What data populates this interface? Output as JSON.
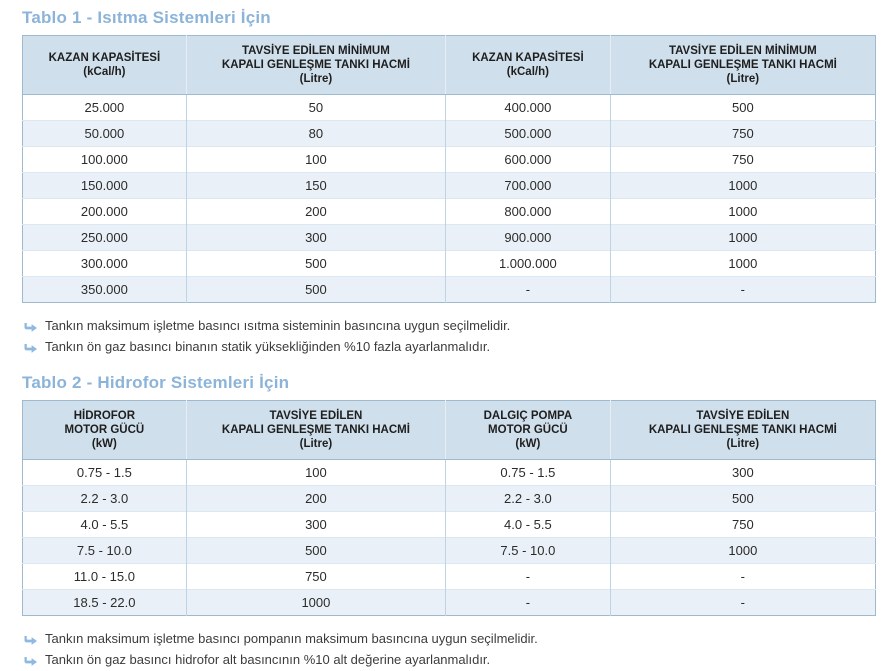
{
  "colors": {
    "title": "#8cb4d9",
    "header-bg": "#cfdfeb",
    "stripe": "#e9f0f7",
    "border-outer": "#9fb9cf",
    "border-inner": "#bed3e4",
    "row-line": "#dbe7f1",
    "header-divider": "#e6edf4",
    "text": "#2b2b2b",
    "note": "#3c3c3c",
    "bullet": "#8fb9e0"
  },
  "table1": {
    "title": "Tablo 1 - Isıtma Sistemleri İçin",
    "headers": [
      "KAZAN KAPASİTESİ\n(kCal/h)",
      "TAVSİYE EDİLEN MİNİMUM\nKAPALI GENLEŞME TANKI HACMİ\n(Litre)",
      "KAZAN KAPASİTESİ\n(kCal/h)",
      "TAVSİYE EDİLEN MİNİMUM\nKAPALI GENLEŞME TANKI HACMİ\n(Litre)"
    ],
    "rows": [
      [
        "25.000",
        "50",
        "400.000",
        "500"
      ],
      [
        "50.000",
        "80",
        "500.000",
        "750"
      ],
      [
        "100.000",
        "100",
        "600.000",
        "750"
      ],
      [
        "150.000",
        "150",
        "700.000",
        "1000"
      ],
      [
        "200.000",
        "200",
        "800.000",
        "1000"
      ],
      [
        "250.000",
        "300",
        "900.000",
        "1000"
      ],
      [
        "300.000",
        "500",
        "1.000.000",
        "1000"
      ],
      [
        "350.000",
        "500",
        "-",
        "-"
      ]
    ],
    "notes": [
      "Tankın maksimum işletme basıncı ısıtma sisteminin basıncına uygun seçilmelidir.",
      "Tankın ön gaz basıncı binanın statik yüksekliğinden %10 fazla ayarlanmalıdır."
    ]
  },
  "table2": {
    "title": "Tablo 2 - Hidrofor Sistemleri İçin",
    "headers": [
      "HİDROFOR\nMOTOR GÜCÜ\n(kW)",
      "TAVSİYE EDİLEN\nKAPALI GENLEŞME TANKI HACMİ\n(Litre)",
      "DALGIÇ POMPA\nMOTOR GÜCÜ\n(kW)",
      "TAVSİYE EDİLEN\nKAPALI GENLEŞME TANKI HACMİ\n(Litre)"
    ],
    "rows": [
      [
        "0.75 - 1.5",
        "100",
        "0.75 - 1.5",
        "300"
      ],
      [
        "2.2 - 3.0",
        "200",
        "2.2 - 3.0",
        "500"
      ],
      [
        "4.0 - 5.5",
        "300",
        "4.0 - 5.5",
        "750"
      ],
      [
        "7.5 - 10.0",
        "500",
        "7.5 - 10.0",
        "1000"
      ],
      [
        "11.0 - 15.0",
        "750",
        "-",
        "-"
      ],
      [
        "18.5 - 22.0",
        "1000",
        "-",
        "-"
      ]
    ],
    "notes": [
      "Tankın maksimum işletme basıncı pompanın maksimum basıncına uygun seçilmelidir.",
      "Tankın ön gaz basıncı hidrofor alt basıncının %10 alt değerine ayarlanmalıdır."
    ]
  }
}
